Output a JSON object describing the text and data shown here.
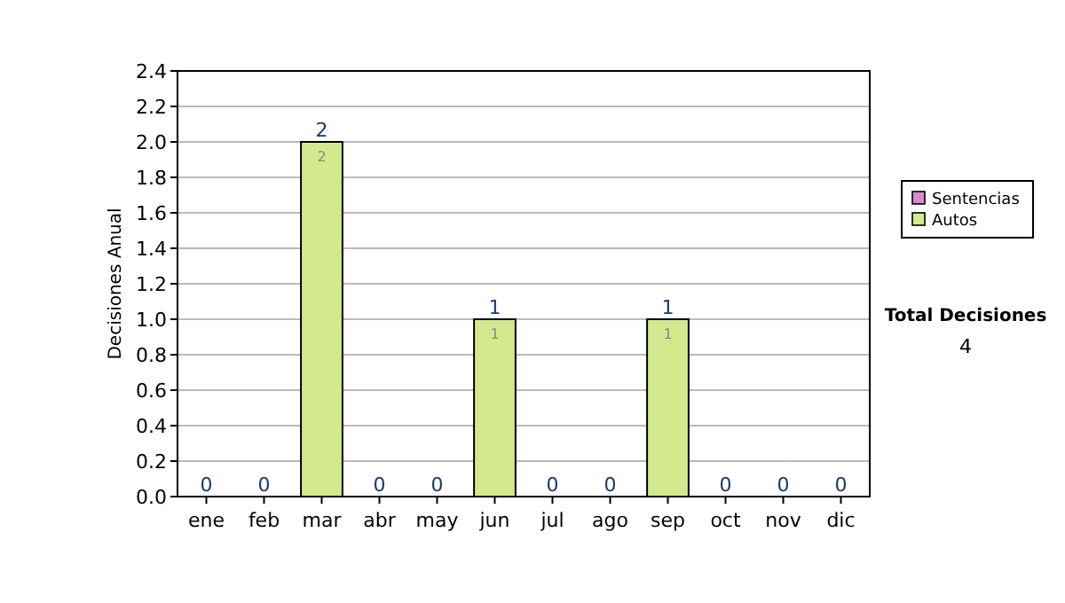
{
  "chart_data": {
    "type": "bar",
    "stacked": true,
    "ylabel": "Decisiones Anual",
    "categories": [
      "ene",
      "feb",
      "mar",
      "abr",
      "may",
      "jun",
      "jul",
      "ago",
      "sep",
      "oct",
      "nov",
      "dic"
    ],
    "series": [
      {
        "name": "Sentencias",
        "color": "#d98ccc",
        "values": [
          0,
          0,
          0,
          0,
          0,
          0,
          0,
          0,
          0,
          0,
          0,
          0
        ]
      },
      {
        "name": "Autos",
        "color": "#d4e98e",
        "values": [
          0,
          0,
          2,
          0,
          0,
          1,
          0,
          0,
          1,
          0,
          0,
          0
        ],
        "value_labels": [
          null,
          null,
          "2",
          null,
          null,
          "1",
          null,
          null,
          "1",
          null,
          null,
          null
        ]
      }
    ],
    "totals": [
      "0",
      "0",
      "2",
      "0",
      "0",
      "1",
      "0",
      "0",
      "1",
      "0",
      "0",
      "0"
    ],
    "ylim": [
      0,
      2.4
    ],
    "yticks": [
      {
        "value": 0,
        "label": "0.0"
      },
      {
        "value": 0.2,
        "label": "0.2"
      },
      {
        "value": 0.4,
        "label": "0.4"
      },
      {
        "value": 0.6,
        "label": "0.6"
      },
      {
        "value": 0.8,
        "label": "0.8"
      },
      {
        "value": 1,
        "label": "1.0"
      },
      {
        "value": 1.2,
        "label": "1.2"
      },
      {
        "value": 1.4,
        "label": "1.4"
      },
      {
        "value": 1.6,
        "label": "1.6"
      },
      {
        "value": 1.8,
        "label": "1.8"
      },
      {
        "value": 2,
        "label": "2.0"
      },
      {
        "value": 2.2,
        "label": "2.2"
      },
      {
        "value": 2.4,
        "label": "2.4"
      }
    ],
    "grid": "y",
    "legend": "right",
    "annotations": [
      "Total Decisiones",
      "4"
    ]
  }
}
